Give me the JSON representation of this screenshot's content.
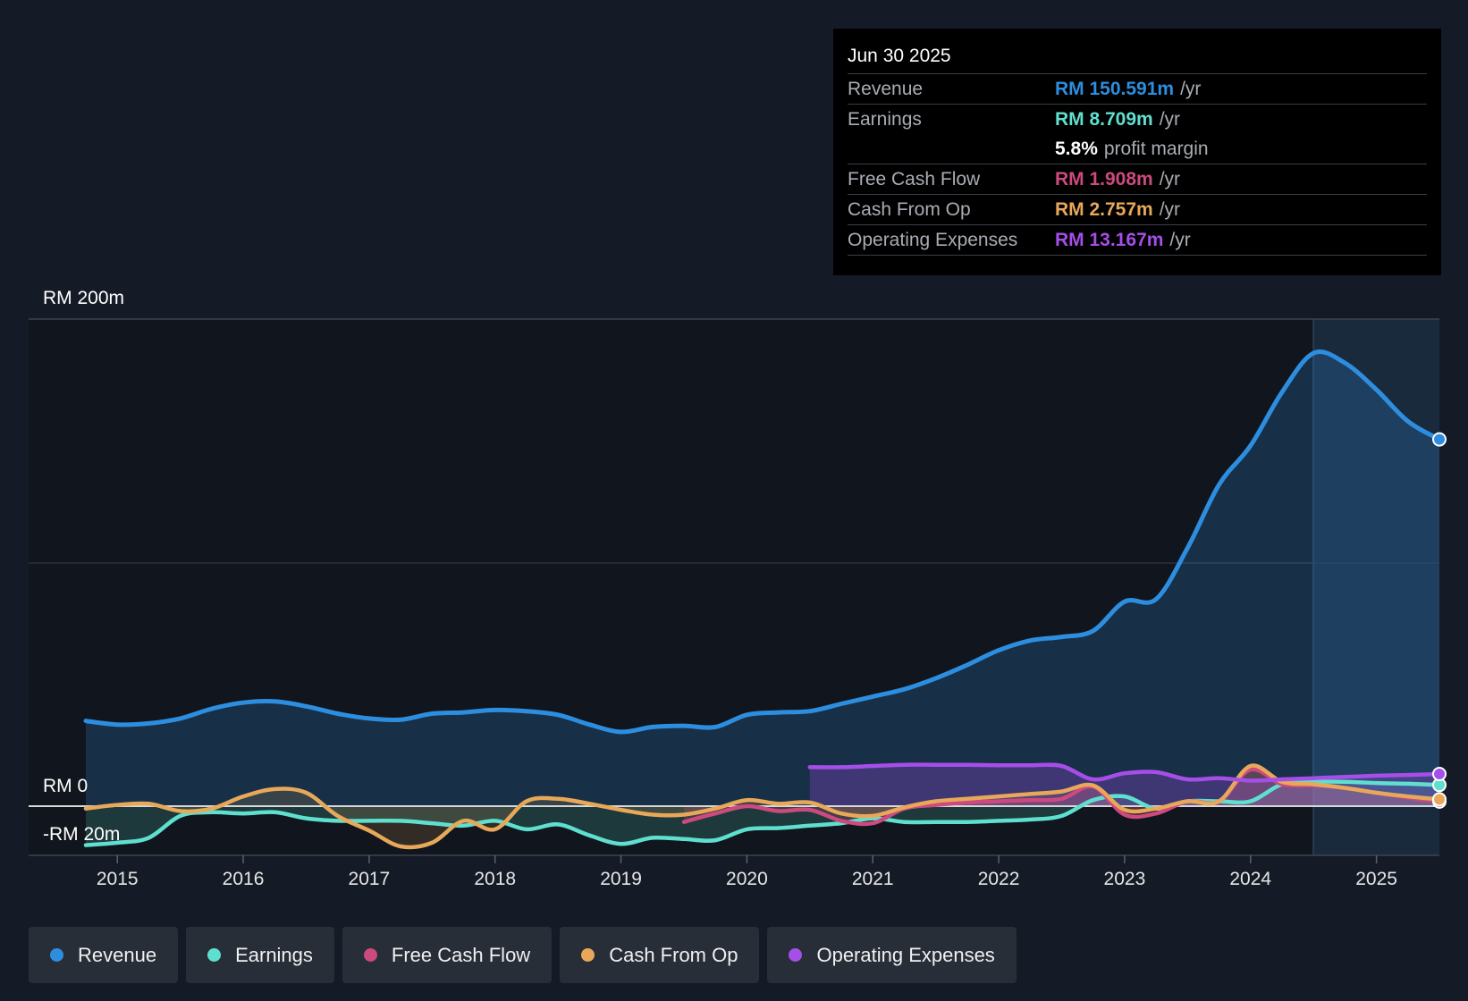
{
  "chart_data": {
    "type": "line",
    "title": "",
    "y_axis_labels": {
      "top": "RM 200m",
      "zero": "RM 0",
      "bottom": "-RM 20m"
    },
    "ylim": [
      -20,
      200
    ],
    "xlim": [
      2014.75,
      2025.5
    ],
    "x_ticks": [
      2015,
      2016,
      2017,
      2018,
      2019,
      2020,
      2021,
      2022,
      2023,
      2024,
      2025
    ],
    "highlight_from": 2024.5,
    "series": [
      {
        "name": "Revenue",
        "color": "#2d8ee0",
        "fill": true,
        "points": [
          [
            2014.75,
            35
          ],
          [
            2015,
            33.5
          ],
          [
            2015.25,
            34
          ],
          [
            2015.5,
            36
          ],
          [
            2015.75,
            40
          ],
          [
            2016,
            42.5
          ],
          [
            2016.25,
            43
          ],
          [
            2016.5,
            41
          ],
          [
            2016.75,
            38
          ],
          [
            2017,
            36
          ],
          [
            2017.25,
            35.5
          ],
          [
            2017.5,
            38
          ],
          [
            2017.75,
            38.5
          ],
          [
            2018,
            39.5
          ],
          [
            2018.25,
            39
          ],
          [
            2018.5,
            37.5
          ],
          [
            2018.75,
            33.5
          ],
          [
            2019,
            30.5
          ],
          [
            2019.25,
            32.5
          ],
          [
            2019.5,
            33
          ],
          [
            2019.75,
            32.5
          ],
          [
            2020,
            37.5
          ],
          [
            2020.25,
            38.5
          ],
          [
            2020.5,
            39
          ],
          [
            2020.75,
            42
          ],
          [
            2021,
            45
          ],
          [
            2021.25,
            48
          ],
          [
            2021.5,
            52.5
          ],
          [
            2021.75,
            58
          ],
          [
            2022,
            64
          ],
          [
            2022.25,
            68
          ],
          [
            2022.5,
            69.5
          ],
          [
            2022.75,
            72
          ],
          [
            2023,
            84
          ],
          [
            2023.25,
            85
          ],
          [
            2023.5,
            106
          ],
          [
            2023.75,
            132
          ],
          [
            2024,
            148
          ],
          [
            2024.25,
            170
          ],
          [
            2024.5,
            186
          ],
          [
            2024.75,
            182
          ],
          [
            2025,
            171
          ],
          [
            2025.25,
            158
          ],
          [
            2025.5,
            150.6
          ]
        ]
      },
      {
        "name": "Earnings",
        "color": "#5fe0cf",
        "fill": true,
        "points": [
          [
            2014.75,
            -16
          ],
          [
            2015,
            -15
          ],
          [
            2015.25,
            -13
          ],
          [
            2015.5,
            -4
          ],
          [
            2015.75,
            -2.5
          ],
          [
            2016,
            -3
          ],
          [
            2016.25,
            -2.5
          ],
          [
            2016.5,
            -5
          ],
          [
            2016.75,
            -6
          ],
          [
            2017,
            -6
          ],
          [
            2017.25,
            -6
          ],
          [
            2017.5,
            -7
          ],
          [
            2017.75,
            -8
          ],
          [
            2018,
            -6
          ],
          [
            2018.25,
            -9.5
          ],
          [
            2018.5,
            -7.5
          ],
          [
            2018.75,
            -12
          ],
          [
            2019,
            -15.5
          ],
          [
            2019.25,
            -13
          ],
          [
            2019.5,
            -13.5
          ],
          [
            2019.75,
            -14
          ],
          [
            2020,
            -9.5
          ],
          [
            2020.25,
            -9
          ],
          [
            2020.5,
            -8
          ],
          [
            2020.75,
            -7
          ],
          [
            2021,
            -5
          ],
          [
            2021.25,
            -6.5
          ],
          [
            2021.5,
            -6.5
          ],
          [
            2021.75,
            -6.5
          ],
          [
            2022,
            -6
          ],
          [
            2022.25,
            -5.5
          ],
          [
            2022.5,
            -4
          ],
          [
            2022.75,
            2.5
          ],
          [
            2023,
            4
          ],
          [
            2023.25,
            -1
          ],
          [
            2023.5,
            2
          ],
          [
            2023.75,
            2
          ],
          [
            2024,
            2
          ],
          [
            2024.25,
            9
          ],
          [
            2024.5,
            10
          ],
          [
            2024.75,
            10
          ],
          [
            2025,
            9.5
          ],
          [
            2025.25,
            9.2
          ],
          [
            2025.5,
            8.7
          ]
        ]
      },
      {
        "name": "Free Cash Flow",
        "color": "#cc4a7e",
        "fill": true,
        "points": [
          [
            2019.5,
            -6.5
          ],
          [
            2019.75,
            -3
          ],
          [
            2020,
            0
          ],
          [
            2020.25,
            -2
          ],
          [
            2020.5,
            -1.5
          ],
          [
            2020.75,
            -6
          ],
          [
            2021,
            -7
          ],
          [
            2021.25,
            -1
          ],
          [
            2021.5,
            0.5
          ],
          [
            2021.75,
            1.5
          ],
          [
            2022,
            2
          ],
          [
            2022.25,
            2.5
          ],
          [
            2022.5,
            3
          ],
          [
            2022.75,
            8
          ],
          [
            2023,
            -3.5
          ],
          [
            2023.25,
            -3
          ],
          [
            2023.5,
            2
          ],
          [
            2023.75,
            2
          ],
          [
            2024,
            15
          ],
          [
            2024.25,
            9
          ],
          [
            2024.5,
            8.5
          ],
          [
            2024.75,
            7.5
          ],
          [
            2025,
            5.5
          ],
          [
            2025.25,
            3.5
          ],
          [
            2025.5,
            1.9
          ]
        ]
      },
      {
        "name": "Cash From Op",
        "color": "#e8a85a",
        "fill": true,
        "points": [
          [
            2014.75,
            -1
          ],
          [
            2015,
            0.5
          ],
          [
            2015.25,
            1
          ],
          [
            2015.5,
            -2
          ],
          [
            2015.75,
            -1
          ],
          [
            2016,
            4
          ],
          [
            2016.25,
            7
          ],
          [
            2016.5,
            5.5
          ],
          [
            2016.75,
            -4
          ],
          [
            2017,
            -10
          ],
          [
            2017.25,
            -16.5
          ],
          [
            2017.5,
            -15
          ],
          [
            2017.75,
            -6
          ],
          [
            2018,
            -9.5
          ],
          [
            2018.25,
            2
          ],
          [
            2018.5,
            3
          ],
          [
            2018.75,
            1
          ],
          [
            2019,
            -1.5
          ],
          [
            2019.25,
            -3.5
          ],
          [
            2019.5,
            -3.5
          ],
          [
            2019.75,
            -1
          ],
          [
            2020,
            2.5
          ],
          [
            2020.25,
            1
          ],
          [
            2020.5,
            1.5
          ],
          [
            2020.75,
            -3
          ],
          [
            2021,
            -4
          ],
          [
            2021.25,
            -0.5
          ],
          [
            2021.5,
            2
          ],
          [
            2021.75,
            3
          ],
          [
            2022,
            4
          ],
          [
            2022.25,
            5
          ],
          [
            2022.5,
            6
          ],
          [
            2022.75,
            8.5
          ],
          [
            2023,
            -1.5
          ],
          [
            2023.25,
            -1
          ],
          [
            2023.5,
            2
          ],
          [
            2023.75,
            2
          ],
          [
            2024,
            16.5
          ],
          [
            2024.25,
            10
          ],
          [
            2024.5,
            9
          ],
          [
            2024.75,
            7.5
          ],
          [
            2025,
            5.5
          ],
          [
            2025.25,
            4
          ],
          [
            2025.5,
            2.8
          ]
        ]
      },
      {
        "name": "Operating Expenses",
        "color": "#a64ee8",
        "fill": true,
        "points": [
          [
            2020.5,
            16
          ],
          [
            2020.75,
            16
          ],
          [
            2021,
            16.5
          ],
          [
            2021.25,
            17
          ],
          [
            2021.5,
            17
          ],
          [
            2021.75,
            17
          ],
          [
            2022,
            16.8
          ],
          [
            2022.25,
            16.8
          ],
          [
            2022.5,
            16.5
          ],
          [
            2022.75,
            11
          ],
          [
            2023,
            13.5
          ],
          [
            2023.25,
            14
          ],
          [
            2023.5,
            11
          ],
          [
            2023.75,
            11.5
          ],
          [
            2024,
            10.5
          ],
          [
            2024.25,
            11
          ],
          [
            2024.5,
            11.5
          ],
          [
            2024.75,
            12
          ],
          [
            2025,
            12.5
          ],
          [
            2025.25,
            12.8
          ],
          [
            2025.5,
            13.2
          ]
        ]
      }
    ]
  },
  "tooltip": {
    "date": "Jun 30 2025",
    "rows": [
      {
        "label": "Revenue",
        "value": "RM 150.591m",
        "unit": "/yr",
        "color": "#2d8ee0"
      },
      {
        "label": "Earnings",
        "value": "RM 8.709m",
        "unit": "/yr",
        "color": "#5fe0cf"
      },
      {
        "label": "Free Cash Flow",
        "value": "RM 1.908m",
        "unit": "/yr",
        "color": "#cc4a7e"
      },
      {
        "label": "Cash From Op",
        "value": "RM 2.757m",
        "unit": "/yr",
        "color": "#e8a85a"
      },
      {
        "label": "Operating Expenses",
        "value": "RM 13.167m",
        "unit": "/yr",
        "color": "#a64ee8"
      }
    ],
    "margin_value": "5.8%",
    "margin_label": "profit margin"
  },
  "legend": [
    {
      "label": "Revenue",
      "color": "#2d8ee0"
    },
    {
      "label": "Earnings",
      "color": "#5fe0cf"
    },
    {
      "label": "Free Cash Flow",
      "color": "#cc4a7e"
    },
    {
      "label": "Cash From Op",
      "color": "#e8a85a"
    },
    {
      "label": "Operating Expenses",
      "color": "#a64ee8"
    }
  ]
}
